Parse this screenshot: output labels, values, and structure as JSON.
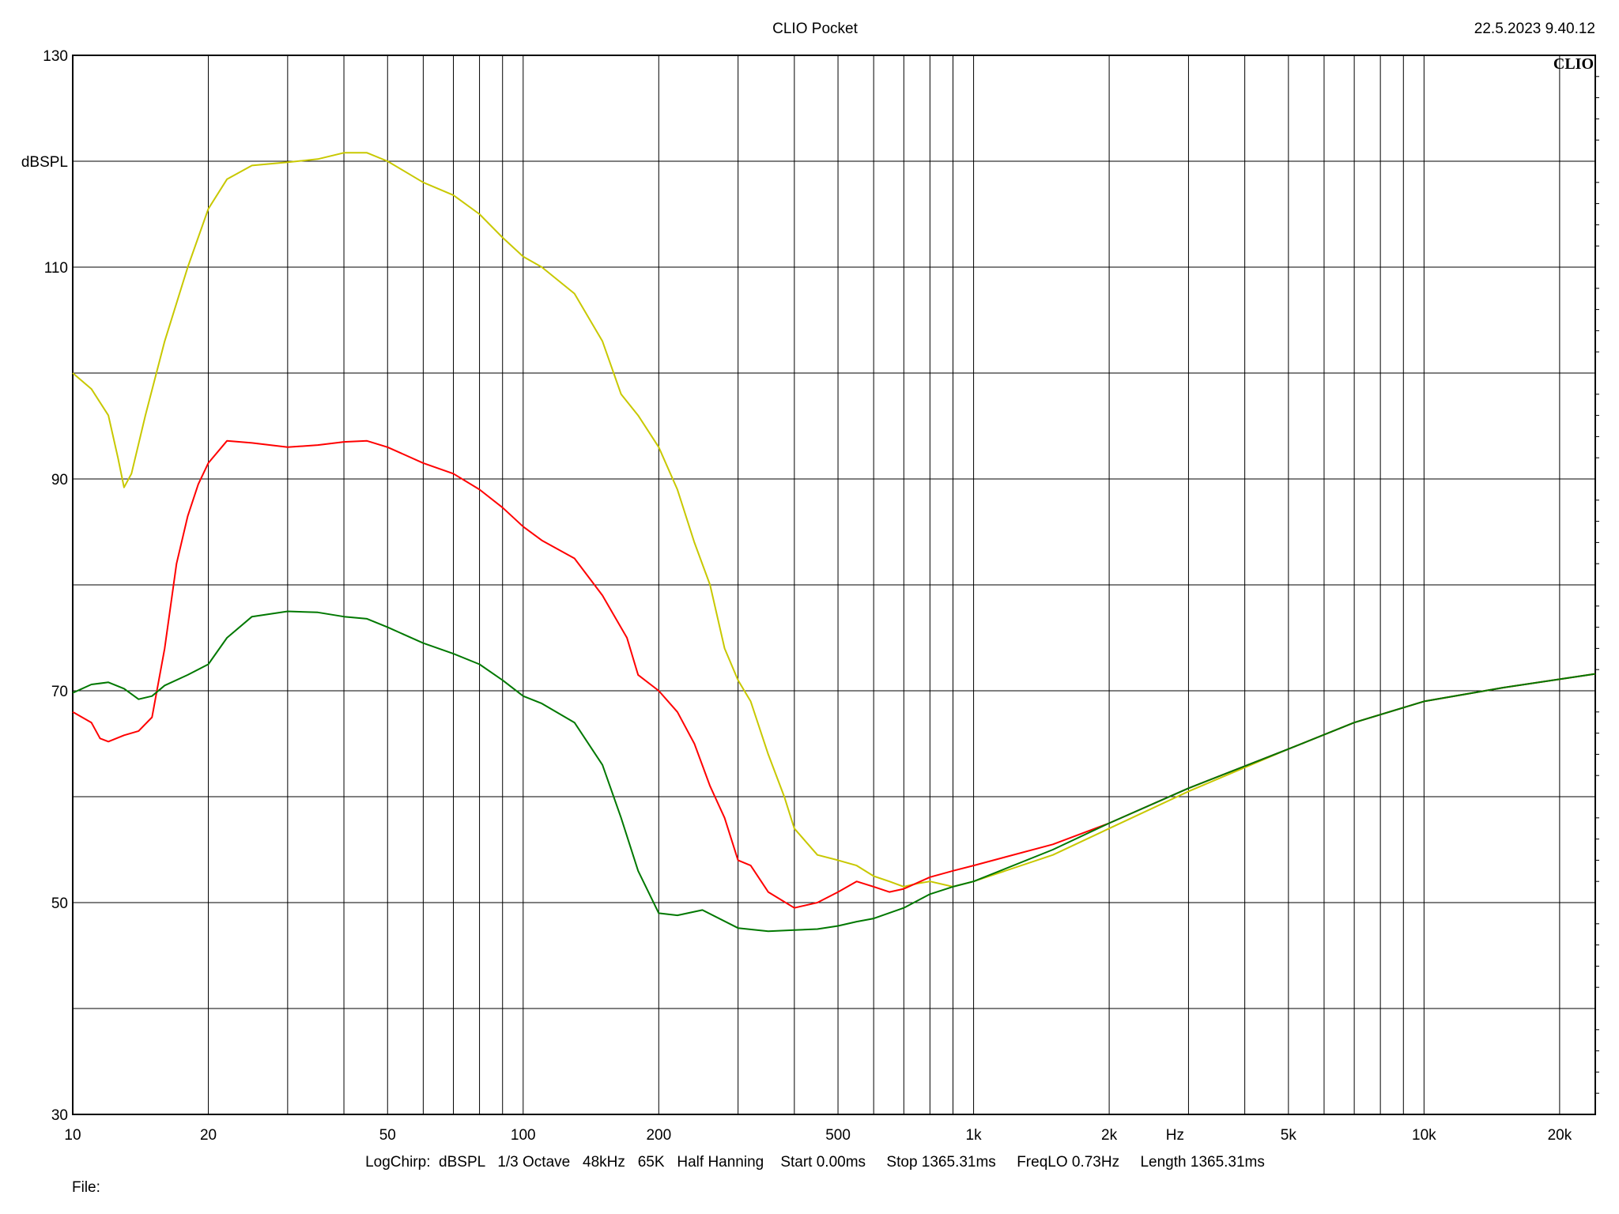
{
  "header": {
    "title": "CLIO Pocket",
    "timestamp": "22.5.2023 9.40.12",
    "logo": "CLIO"
  },
  "footer": {
    "settings": "LogChirp:  dBSPL   1/3 Octave   48kHz   65K   Half Hanning    Start 0.00ms     Stop 1365.31ms     FreqLO 0.73Hz     Length 1365.31ms",
    "file_label": "File:"
  },
  "chart_data": {
    "type": "line",
    "title": "CLIO Pocket",
    "xlabel": "Hz",
    "ylabel": "dBSPL",
    "xscale": "log",
    "xlim": [
      10,
      24000
    ],
    "ylim": [
      30,
      130
    ],
    "grid": true,
    "x_ticks": [
      {
        "value": 10,
        "label": "10"
      },
      {
        "value": 20,
        "label": "20"
      },
      {
        "value": 50,
        "label": "50"
      },
      {
        "value": 100,
        "label": "100"
      },
      {
        "value": 200,
        "label": "200"
      },
      {
        "value": 500,
        "label": "500"
      },
      {
        "value": 1000,
        "label": "1k"
      },
      {
        "value": 2000,
        "label": "2k"
      },
      {
        "value": 5000,
        "label": "5k"
      },
      {
        "value": 10000,
        "label": "10k"
      },
      {
        "value": 20000,
        "label": "20k"
      }
    ],
    "x_unit_tick": {
      "value": 2800,
      "label": "Hz"
    },
    "x_minor_grid": [
      30,
      40,
      60,
      70,
      80,
      90,
      300,
      400,
      600,
      700,
      800,
      900,
      3000,
      4000,
      6000,
      7000,
      8000,
      9000
    ],
    "y_ticks": [
      {
        "value": 30,
        "label": "30"
      },
      {
        "value": 40,
        "label": ""
      },
      {
        "value": 50,
        "label": "50"
      },
      {
        "value": 60,
        "label": ""
      },
      {
        "value": 70,
        "label": "70"
      },
      {
        "value": 80,
        "label": ""
      },
      {
        "value": 90,
        "label": "90"
      },
      {
        "value": 100,
        "label": ""
      },
      {
        "value": 110,
        "label": "110"
      },
      {
        "value": 120,
        "label": "dBSPL"
      },
      {
        "value": 130,
        "label": "130"
      }
    ],
    "series": [
      {
        "color": "#c8c800",
        "points": [
          [
            10,
            100
          ],
          [
            11,
            98.5
          ],
          [
            12,
            96
          ],
          [
            12.6,
            92
          ],
          [
            13,
            89.2
          ],
          [
            13.5,
            90.5
          ],
          [
            14.5,
            96
          ],
          [
            16,
            103
          ],
          [
            18,
            110
          ],
          [
            20,
            115.5
          ],
          [
            22,
            118.3
          ],
          [
            25,
            119.6
          ],
          [
            30,
            119.9
          ],
          [
            35,
            120.2
          ],
          [
            40,
            120.8
          ],
          [
            45,
            120.8
          ],
          [
            50,
            120
          ],
          [
            60,
            118
          ],
          [
            70,
            116.8
          ],
          [
            80,
            115
          ],
          [
            90,
            112.8
          ],
          [
            100,
            111
          ],
          [
            110,
            110
          ],
          [
            130,
            107.5
          ],
          [
            150,
            103
          ],
          [
            165,
            98
          ],
          [
            180,
            96
          ],
          [
            200,
            93
          ],
          [
            220,
            89
          ],
          [
            240,
            84
          ],
          [
            260,
            80
          ],
          [
            280,
            74
          ],
          [
            300,
            71
          ],
          [
            320,
            69
          ],
          [
            350,
            64
          ],
          [
            380,
            60
          ],
          [
            400,
            57
          ],
          [
            450,
            54.5
          ],
          [
            500,
            54
          ],
          [
            550,
            53.5
          ],
          [
            600,
            52.5
          ],
          [
            650,
            52
          ],
          [
            700,
            51.5
          ],
          [
            750,
            51.8
          ],
          [
            800,
            52
          ],
          [
            900,
            51.5
          ],
          [
            1000,
            52
          ],
          [
            1500,
            54.5
          ],
          [
            2000,
            57
          ],
          [
            3000,
            60.5
          ],
          [
            5000,
            64.5
          ],
          [
            7000,
            67
          ],
          [
            10000,
            69
          ],
          [
            15000,
            70.3
          ],
          [
            24000,
            71.6
          ]
        ]
      },
      {
        "color": "#ff0000",
        "points": [
          [
            10,
            68
          ],
          [
            11,
            67
          ],
          [
            11.5,
            65.5
          ],
          [
            12,
            65.2
          ],
          [
            13,
            65.8
          ],
          [
            14,
            66.2
          ],
          [
            15,
            67.5
          ],
          [
            16,
            74
          ],
          [
            17,
            82
          ],
          [
            18,
            86.5
          ],
          [
            19,
            89.5
          ],
          [
            20,
            91.5
          ],
          [
            22,
            93.6
          ],
          [
            25,
            93.4
          ],
          [
            30,
            93
          ],
          [
            35,
            93.2
          ],
          [
            40,
            93.5
          ],
          [
            45,
            93.6
          ],
          [
            50,
            93
          ],
          [
            60,
            91.5
          ],
          [
            70,
            90.5
          ],
          [
            80,
            89
          ],
          [
            90,
            87.3
          ],
          [
            100,
            85.5
          ],
          [
            110,
            84.2
          ],
          [
            130,
            82.5
          ],
          [
            150,
            79
          ],
          [
            170,
            75
          ],
          [
            180,
            71.5
          ],
          [
            200,
            70
          ],
          [
            220,
            68
          ],
          [
            240,
            65
          ],
          [
            260,
            61
          ],
          [
            280,
            58
          ],
          [
            300,
            54
          ],
          [
            320,
            53.5
          ],
          [
            350,
            51
          ],
          [
            400,
            49.5
          ],
          [
            450,
            50
          ],
          [
            500,
            51
          ],
          [
            550,
            52
          ],
          [
            600,
            51.5
          ],
          [
            650,
            51
          ],
          [
            700,
            51.3
          ],
          [
            800,
            52.4
          ],
          [
            900,
            53
          ],
          [
            1000,
            53.5
          ],
          [
            1500,
            55.5
          ],
          [
            2000,
            57.5
          ],
          [
            3000,
            60.8
          ],
          [
            5000,
            64.5
          ],
          [
            7000,
            67
          ],
          [
            10000,
            69
          ],
          [
            15000,
            70.3
          ],
          [
            24000,
            71.6
          ]
        ]
      },
      {
        "color": "#007800",
        "points": [
          [
            10,
            69.8
          ],
          [
            11,
            70.6
          ],
          [
            12,
            70.8
          ],
          [
            13,
            70.2
          ],
          [
            14,
            69.2
          ],
          [
            15,
            69.5
          ],
          [
            16,
            70.5
          ],
          [
            18,
            71.5
          ],
          [
            20,
            72.5
          ],
          [
            22,
            75
          ],
          [
            25,
            77
          ],
          [
            30,
            77.5
          ],
          [
            35,
            77.4
          ],
          [
            40,
            77
          ],
          [
            45,
            76.8
          ],
          [
            50,
            76
          ],
          [
            60,
            74.5
          ],
          [
            70,
            73.5
          ],
          [
            80,
            72.5
          ],
          [
            90,
            71
          ],
          [
            100,
            69.5
          ],
          [
            110,
            68.8
          ],
          [
            130,
            67
          ],
          [
            150,
            63
          ],
          [
            165,
            58
          ],
          [
            180,
            53
          ],
          [
            200,
            49
          ],
          [
            220,
            48.8
          ],
          [
            250,
            49.3
          ],
          [
            300,
            47.6
          ],
          [
            350,
            47.3
          ],
          [
            400,
            47.4
          ],
          [
            450,
            47.5
          ],
          [
            500,
            47.8
          ],
          [
            550,
            48.2
          ],
          [
            600,
            48.5
          ],
          [
            700,
            49.5
          ],
          [
            800,
            50.8
          ],
          [
            900,
            51.5
          ],
          [
            1000,
            52
          ],
          [
            1500,
            55
          ],
          [
            2000,
            57.5
          ],
          [
            3000,
            60.8
          ],
          [
            5000,
            64.5
          ],
          [
            7000,
            67
          ],
          [
            10000,
            69
          ],
          [
            15000,
            70.3
          ],
          [
            24000,
            71.6
          ]
        ]
      }
    ]
  }
}
